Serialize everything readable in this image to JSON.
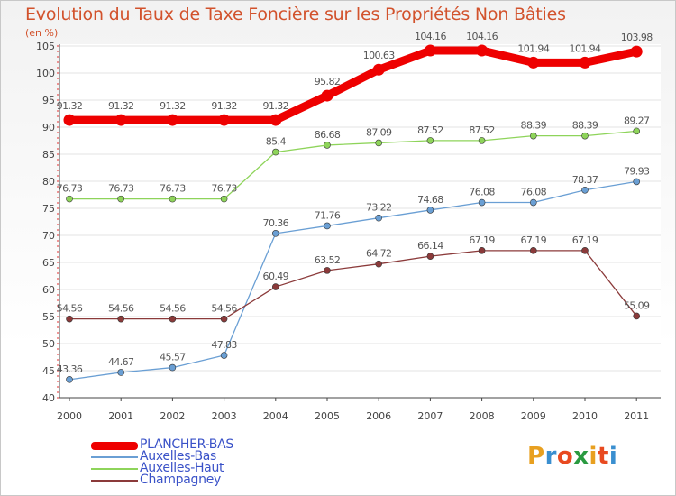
{
  "title": "Evolution du Taux de Taxe Foncière sur les Propriétés Non Bâties",
  "unit": "(en %)",
  "logo": {
    "letters": [
      "P",
      "r",
      "o",
      "x",
      "i",
      "t",
      "i"
    ],
    "colors": [
      "#e8a020",
      "#3a8fd0",
      "#e84a20",
      "#2a9a40",
      "#e8a020",
      "#e84a20",
      "#3a8fd0"
    ]
  },
  "chart_data": {
    "type": "line",
    "title": "Evolution du Taux de Taxe Foncière sur les Propriétés Non Bâties",
    "ylabel": "(en %)",
    "xlabel": "",
    "x": [
      "2000",
      "2001",
      "2002",
      "2003",
      "2004",
      "2005",
      "2006",
      "2007",
      "2008",
      "2009",
      "2010",
      "2011"
    ],
    "ylim": [
      40,
      105
    ],
    "yticks": [
      40,
      45,
      50,
      55,
      60,
      65,
      70,
      75,
      80,
      85,
      90,
      95,
      100,
      105
    ],
    "grid": "horizontal",
    "legend": "bottom-left",
    "series": [
      {
        "name": "PLANCHER-BAS",
        "color": "#ee0000",
        "values": [
          91.32,
          91.32,
          91.32,
          91.32,
          91.32,
          95.82,
          100.63,
          104.16,
          104.16,
          101.94,
          101.94,
          103.98
        ],
        "labels": [
          "91.32",
          "91.32",
          "91.32",
          "91.32",
          "91.32",
          "95.82",
          "100.63",
          "104.16",
          "104.16",
          "101.94",
          "101.94",
          "103.98"
        ]
      },
      {
        "name": "Auxelles-Bas",
        "color": "#6a9fd4",
        "values": [
          43.36,
          44.67,
          45.57,
          47.83,
          70.36,
          71.76,
          73.22,
          74.68,
          76.08,
          76.08,
          78.37,
          79.93
        ],
        "labels": [
          "43.36",
          "44.67",
          "45.57",
          "47.83",
          "70.36",
          "71.76",
          "73.22",
          "74.68",
          "76.08",
          "76.08",
          "78.37",
          "79.93"
        ]
      },
      {
        "name": "Auxelles-Haut",
        "color": "#8ed45a",
        "values": [
          76.73,
          76.73,
          76.73,
          76.73,
          85.4,
          86.68,
          87.09,
          87.52,
          87.52,
          88.39,
          88.39,
          89.27
        ],
        "labels": [
          "76.73",
          "76.73",
          "76.73",
          "76.73",
          "85.4",
          "86.68",
          "87.09",
          "87.52",
          "87.52",
          "88.39",
          "88.39",
          "89.27"
        ]
      },
      {
        "name": "Champagney",
        "color": "#8b3a3a",
        "values": [
          54.56,
          54.56,
          54.56,
          54.56,
          60.49,
          63.52,
          64.72,
          66.14,
          67.19,
          67.19,
          67.19,
          55.09
        ],
        "labels": [
          "54.56",
          "54.56",
          "54.56",
          "54.56",
          "60.49",
          "63.52",
          "64.72",
          "66.14",
          "67.19",
          "67.19",
          "67.19",
          "55.09"
        ]
      }
    ]
  }
}
